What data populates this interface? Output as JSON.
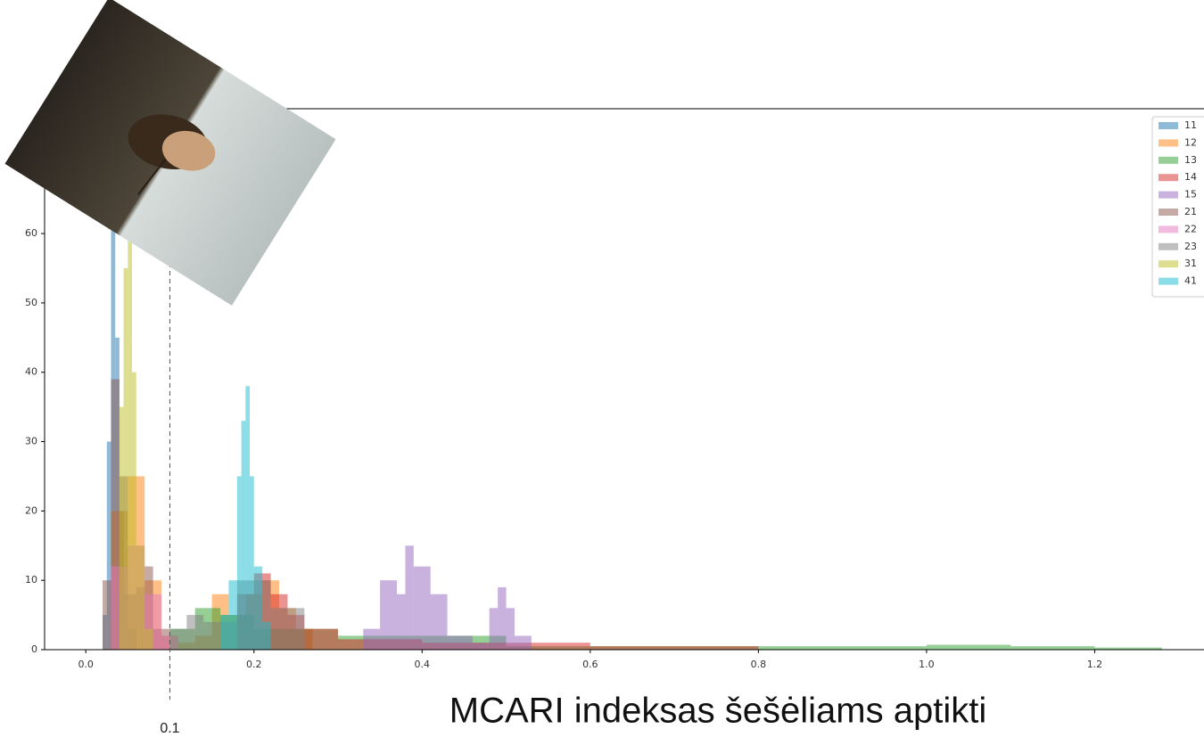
{
  "chart_data": {
    "type": "histogram",
    "title": "MCARI indeksas šešėliams aptikti",
    "threshold": 0.1,
    "xlim": [
      -0.049,
      1.33
    ],
    "ylim": [
      0,
      78
    ],
    "xticks": [
      {
        "value": 0,
        "label": "0.0"
      },
      0.2,
      0.4,
      0.6,
      0.8,
      {
        "value": 1,
        "label": "1.0"
      },
      1.2
    ],
    "yticks": [
      0,
      10,
      20,
      30,
      40,
      50,
      60
    ],
    "legend": "upper-right",
    "series": [
      {
        "name": "11",
        "color": "#1f77b4",
        "bins": [
          0.02,
          0.025,
          0.03,
          0.035,
          0.04,
          0.045,
          0.05,
          0.06
        ],
        "values": [
          5,
          30,
          62,
          45,
          20,
          8,
          3
        ]
      },
      {
        "name": "12",
        "color": "#ff7f0e",
        "bins": [
          0.03,
          0.05,
          0.07,
          0.09,
          0.11,
          0.13,
          0.15,
          0.17,
          0.19,
          0.21,
          0.23,
          0.25,
          0.27
        ],
        "values": [
          20,
          25,
          10,
          2,
          1,
          2,
          8,
          5,
          8,
          10,
          6,
          3
        ]
      },
      {
        "name": "13",
        "color": "#2ca02c",
        "bins": [
          0.1,
          0.13,
          0.16,
          0.2,
          0.3,
          0.5,
          0.8,
          1.0,
          1.1,
          1.2,
          1.28
        ],
        "values": [
          3,
          6,
          5,
          3,
          2,
          0.5,
          0.5,
          0.7,
          0.5,
          0.3
        ]
      },
      {
        "name": "14",
        "color": "#d62728",
        "bins": [
          0.18,
          0.2,
          0.22,
          0.24,
          0.26,
          0.3,
          0.4,
          0.6,
          0.8
        ],
        "values": [
          8,
          11,
          8,
          5,
          3,
          1.5,
          1,
          0.5
        ]
      },
      {
        "name": "15",
        "color": "#9467bd",
        "bins": [
          0.33,
          0.35,
          0.37,
          0.38,
          0.39,
          0.41,
          0.43,
          0.46,
          0.48,
          0.49,
          0.5,
          0.51,
          0.53
        ],
        "values": [
          3,
          10,
          8,
          15,
          12,
          8,
          2,
          1,
          6,
          9,
          6,
          2
        ]
      },
      {
        "name": "21",
        "color": "#8c564b",
        "bins": [
          0.02,
          0.03,
          0.04,
          0.05,
          0.06,
          0.07,
          0.08,
          0.1
        ],
        "values": [
          10,
          39,
          25,
          8,
          9,
          12,
          3
        ]
      },
      {
        "name": "22",
        "color": "#e377c2",
        "bins": [
          0.03,
          0.05,
          0.07,
          0.09,
          0.11
        ],
        "values": [
          12,
          15,
          8,
          2
        ]
      },
      {
        "name": "23",
        "color": "#7f7f7f",
        "bins": [
          0.1,
          0.12,
          0.14,
          0.18,
          0.22,
          0.26
        ],
        "values": [
          3,
          5,
          4,
          10,
          6
        ]
      },
      {
        "name": "31",
        "color": "#bcbd22",
        "bins": [
          0.04,
          0.045,
          0.05,
          0.055,
          0.06,
          0.07,
          0.08
        ],
        "values": [
          35,
          55,
          62,
          40,
          15,
          3
        ]
      },
      {
        "name": "41",
        "color": "#17becf",
        "bins": [
          0.16,
          0.17,
          0.18,
          0.185,
          0.19,
          0.195,
          0.2,
          0.21,
          0.22
        ],
        "values": [
          5,
          10,
          25,
          33,
          38,
          25,
          12,
          4
        ]
      }
    ]
  }
}
